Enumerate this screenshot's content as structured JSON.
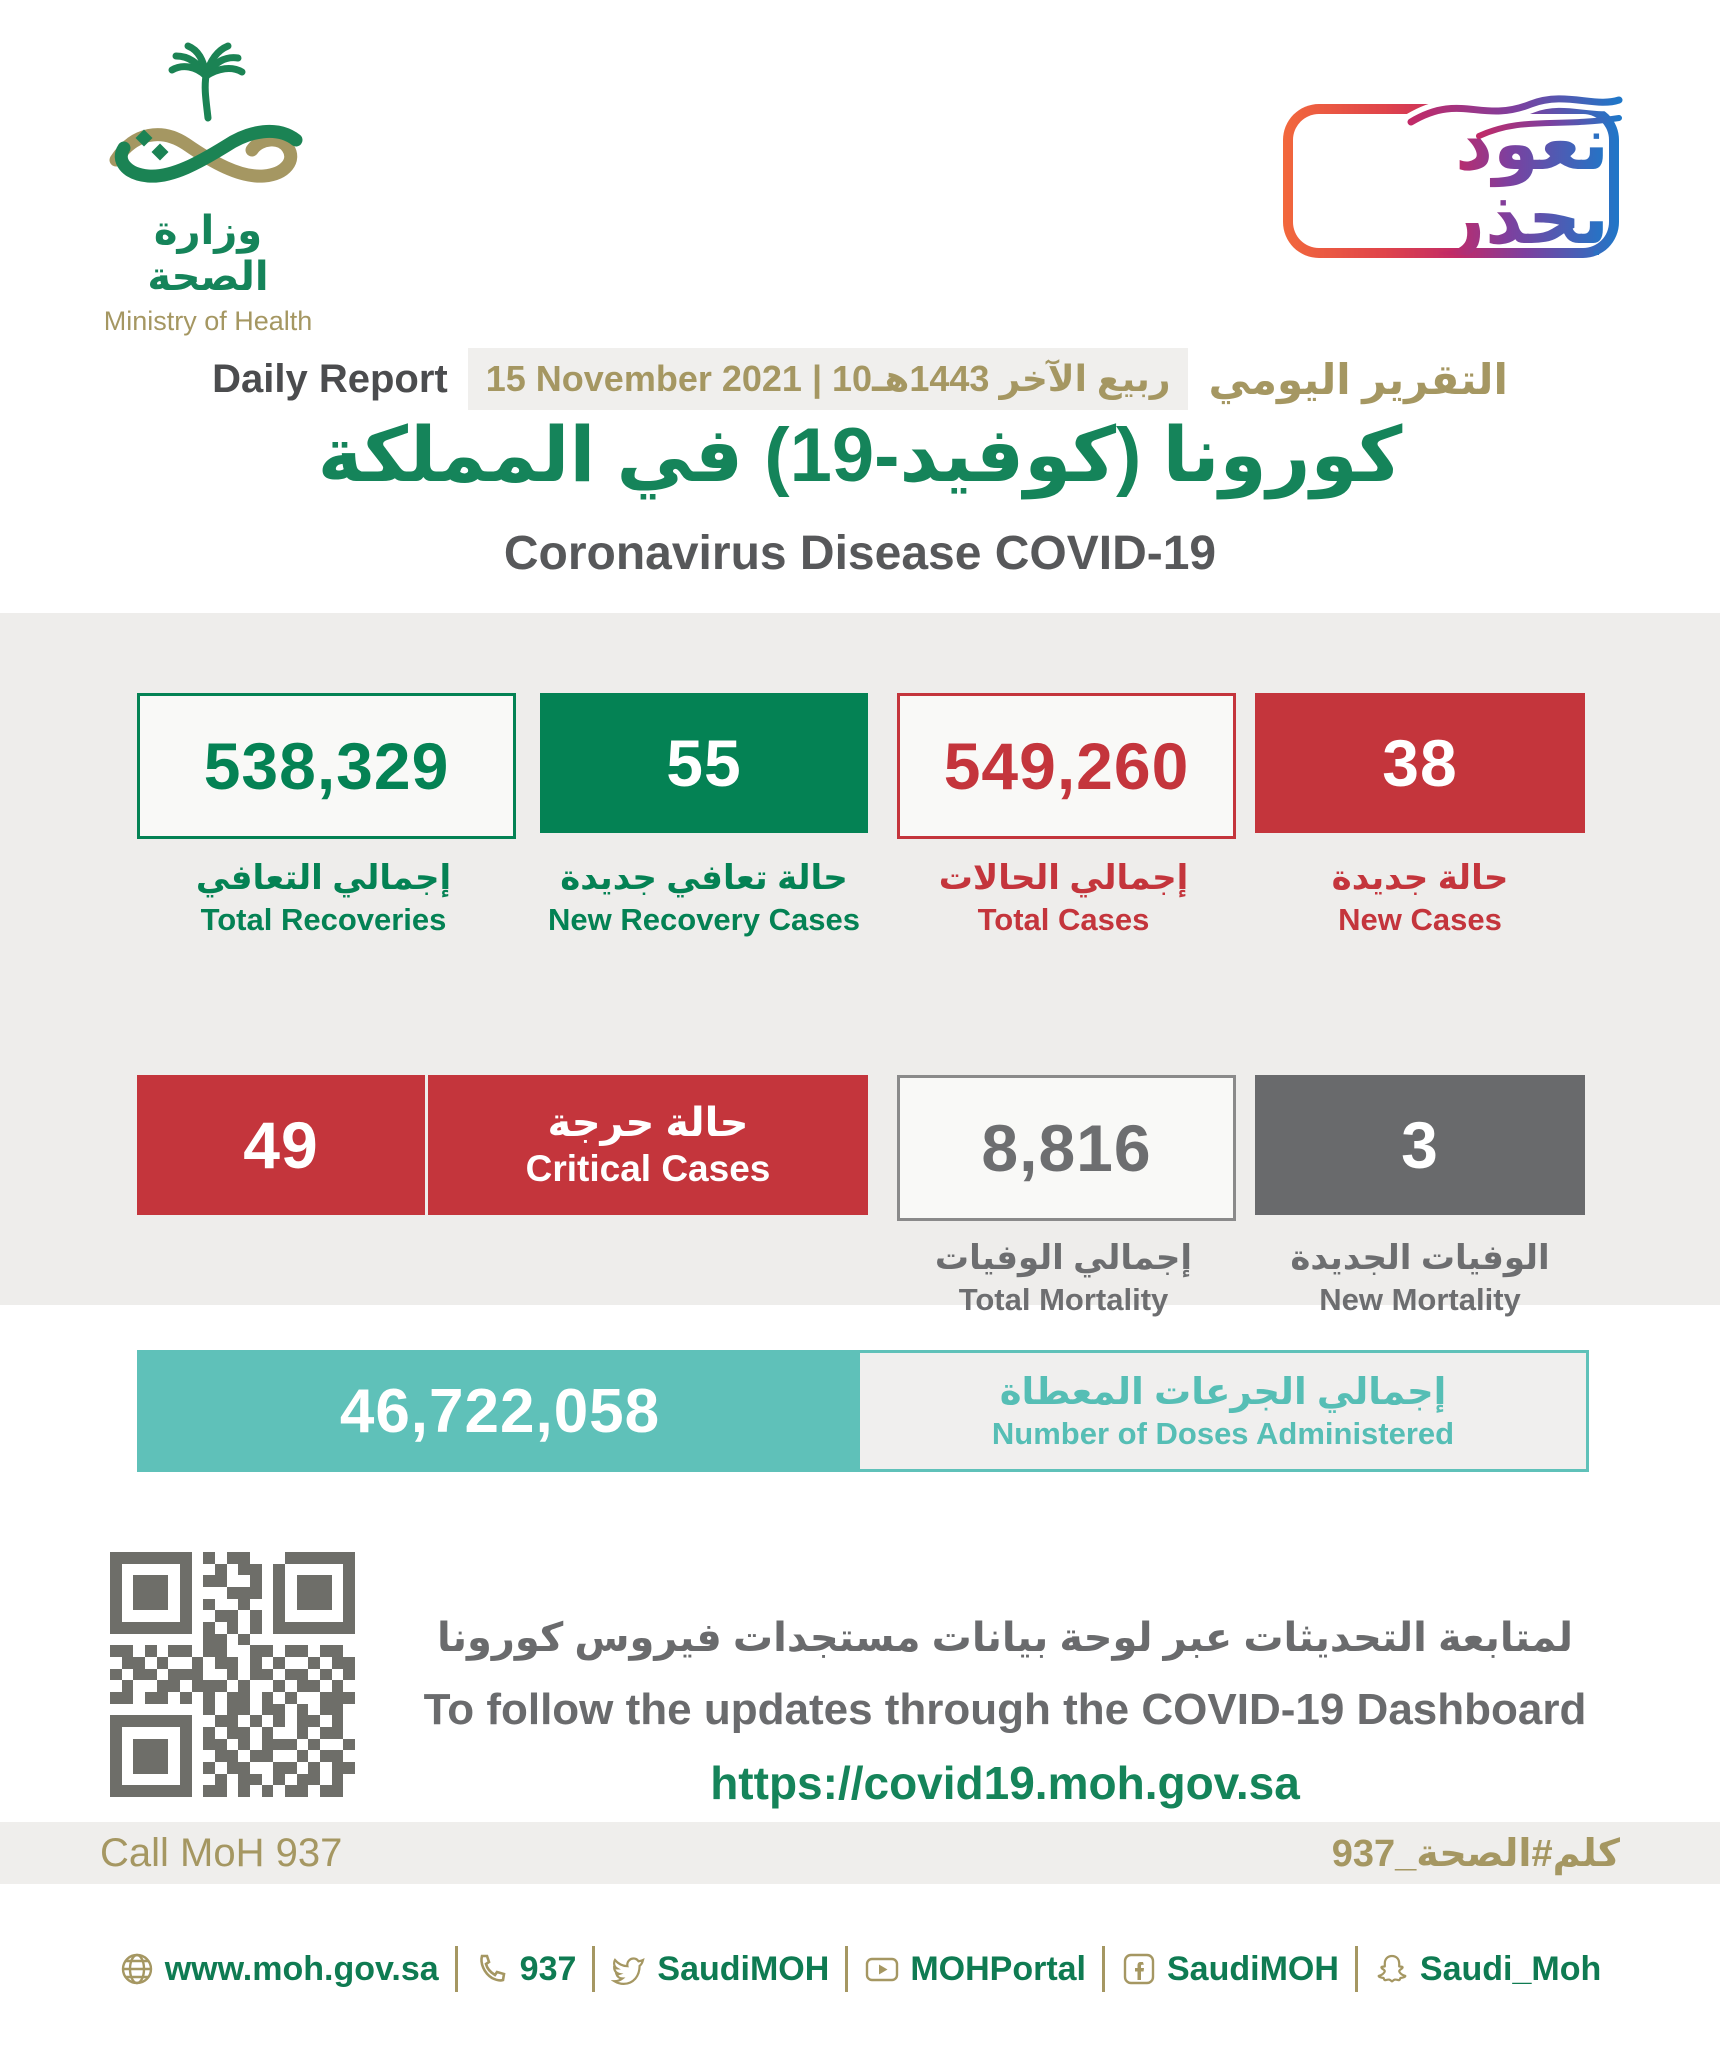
{
  "colors": {
    "green": "#15845a",
    "green-box": "#048254",
    "red": "#c4353c",
    "gold": "#a59762",
    "teal": "#5fc1b9",
    "teal-text": "#56beb5"
  },
  "brand": {
    "logo_title_ar": "وزارة الصحة",
    "logo_title_en": "Ministry of Health"
  },
  "badge": {
    "text_ar": "نعود بحذر"
  },
  "report_header": {
    "daily_report_en": "Daily Report",
    "date_text": "15 November 2021 | 10ربيع الآخر 1443هـ",
    "daily_report_ar": "التقرير اليومي",
    "title_ar": "كورونا (كوفيد-19) في المملكة",
    "title_en": "Coronavirus Disease COVID-19"
  },
  "stats": {
    "row1": [
      {
        "value": "538,329",
        "label_ar": "إجمالي التعافي",
        "label_en": "Total Recoveries"
      },
      {
        "value": "55",
        "label_ar": "حالة تعافي جديدة",
        "label_en": "New Recovery Cases"
      },
      {
        "value": "549,260",
        "label_ar": "إجمالي الحالات",
        "label_en": "Total Cases"
      },
      {
        "value": "38",
        "label_ar": "حالة جديدة",
        "label_en": "New Cases"
      }
    ],
    "row2": {
      "critical_value": "49",
      "critical_label_ar": "حالة حرجة",
      "critical_label_en": "Critical Cases",
      "total_mortality": {
        "value": "8,816",
        "label_ar": "إجمالي الوفيات",
        "label_en": "Total Mortality"
      },
      "new_mortality": {
        "value": "3",
        "label_ar": "الوفيات الجديدة",
        "label_en": "New Mortality"
      }
    }
  },
  "doses": {
    "value": "46,722,058",
    "label_ar": "إجمالي الجرعات المعطاة",
    "label_en": "Number of Doses Administered"
  },
  "dashboard": {
    "text_ar": "لمتابعة التحديثات عبر لوحة بيانات مستجدات فيروس كورونا",
    "text_en": "To follow the updates through the COVID-19 Dashboard",
    "url": "https://covid19.moh.gov.sa"
  },
  "contact": {
    "call_en": "Call MoH 937",
    "call_ar": "كلم#الصحة_937"
  },
  "footer": {
    "items": [
      {
        "icon": "globe-icon",
        "label": "www.moh.gov.sa"
      },
      {
        "icon": "phone-icon",
        "label": "937"
      },
      {
        "icon": "twitter-icon",
        "label": "SaudiMOH"
      },
      {
        "icon": "youtube-icon",
        "label": "MOHPortal"
      },
      {
        "icon": "facebook-icon",
        "label": "SaudiMOH"
      },
      {
        "icon": "snapchat-icon",
        "label": "Saudi_Moh"
      }
    ]
  },
  "qr": {
    "matrix": [
      "111111101011000111111",
      "100000100101101000001",
      "101110101100101011101",
      "101110100011101011101",
      "101110101001001011101",
      "100000100110101000001",
      "111111101010101111111",
      "000000001101000000000",
      "110101101100110110110",
      "011010010110101001011",
      "101101110010110110101",
      "010011011101001011010",
      "110110101011010100111",
      "000000001011011010110",
      "111111100110101011010",
      "100000101011010010110",
      "101110101101011101001",
      "101110100110110010110",
      "101110101011001101011",
      "100000100101101011010",
      "111111101101010110110"
    ]
  }
}
